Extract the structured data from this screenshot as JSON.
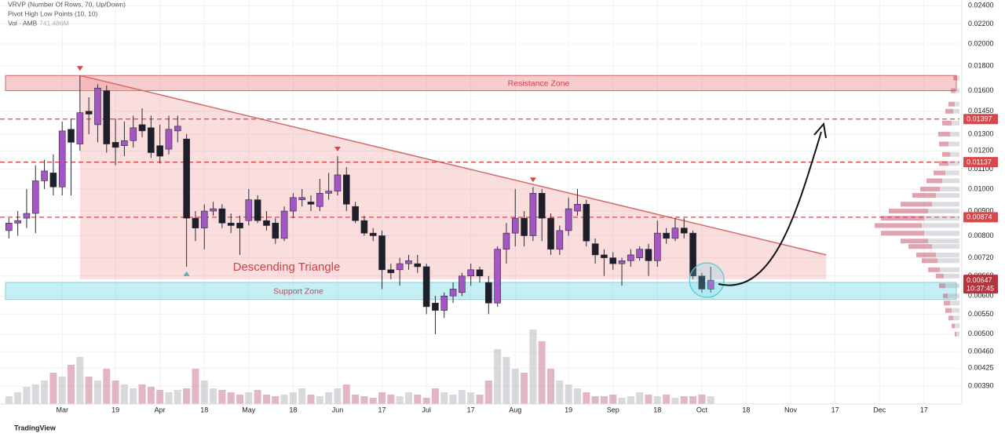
{
  "chart_data": {
    "type": "candlestick",
    "indicators": [
      "VRVP (Number Of Rows, 70, Up/Down)",
      "Pivot High Low Points (10, 10)"
    ],
    "volume_title": "Vol · AMB",
    "volume_value_label": "741.486M",
    "footer": "TradingView",
    "up_color": "#a356c4",
    "down_color": "#1f1e2b",
    "volume_up_color": "rgba(170,170,180,0.45)",
    "volume_down_color": "rgba(200,110,135,0.5)",
    "log_scale": true,
    "grid": true,
    "xlim": [
      -1,
      107
    ],
    "xticks": [
      {
        "value": 6,
        "label": "Mar"
      },
      {
        "value": 12,
        "label": "19"
      },
      {
        "value": 17,
        "label": "Apr"
      },
      {
        "value": 22,
        "label": "18"
      },
      {
        "value": 27,
        "label": "May"
      },
      {
        "value": 32,
        "label": "18"
      },
      {
        "value": 37,
        "label": "Jun"
      },
      {
        "value": 42,
        "label": "17"
      },
      {
        "value": 47,
        "label": "Jul"
      },
      {
        "value": 52,
        "label": "17"
      },
      {
        "value": 57,
        "label": "Aug"
      },
      {
        "value": 63,
        "label": "19"
      },
      {
        "value": 68,
        "label": "Sep"
      },
      {
        "value": 73,
        "label": "18"
      },
      {
        "value": 78,
        "label": "Oct"
      },
      {
        "value": 83,
        "label": "18"
      },
      {
        "value": 88,
        "label": "Nov"
      },
      {
        "value": 93,
        "label": "17"
      },
      {
        "value": 98,
        "label": "Dec"
      },
      {
        "value": 103,
        "label": "17"
      }
    ],
    "ylim": [
      0.00358,
      0.02467
    ],
    "yticks": [
      {
        "value": 0.024,
        "label": "0.02400"
      },
      {
        "value": 0.022,
        "label": "0.02200"
      },
      {
        "value": 0.02,
        "label": "0.02000"
      },
      {
        "value": 0.018,
        "label": "0.01800"
      },
      {
        "value": 0.016,
        "label": "0.01600"
      },
      {
        "value": 0.0145,
        "label": "0.01450"
      },
      {
        "value": 0.013,
        "label": "0.01300"
      },
      {
        "value": 0.012,
        "label": "0.01200"
      },
      {
        "value": 0.011,
        "label": "0.01100"
      },
      {
        "value": 0.01,
        "label": "0.01000"
      },
      {
        "value": 0.009,
        "label": "0.00900"
      },
      {
        "value": 0.008,
        "label": "0.00800"
      },
      {
        "value": 0.0072,
        "label": "0.00720"
      },
      {
        "value": 0.0066,
        "label": "0.00660"
      },
      {
        "value": 0.006,
        "label": "0.00600"
      },
      {
        "value": 0.0055,
        "label": "0.00550"
      },
      {
        "value": 0.005,
        "label": "0.00500"
      },
      {
        "value": 0.0046,
        "label": "0.00460"
      },
      {
        "value": 0.00425,
        "label": "0.00425"
      },
      {
        "value": 0.0039,
        "label": "0.00390"
      }
    ],
    "open": [
      0.0082,
      0.0085,
      0.0087,
      0.0089,
      0.0104,
      0.0108,
      0.0101,
      0.0133,
      0.0124,
      0.0145,
      0.0136,
      0.016,
      0.0125,
      0.0123,
      0.0126,
      0.0136,
      0.0134,
      0.0123,
      0.0121,
      0.0132,
      0.0127,
      0.0087,
      0.0083,
      0.009,
      0.0091,
      0.0085,
      0.0085,
      0.0086,
      0.0095,
      0.0086,
      0.0085,
      0.0079,
      0.009,
      0.0095,
      0.0094,
      0.0092,
      0.0098,
      0.0099,
      0.0107,
      0.0092,
      0.0086,
      0.0081,
      0.008,
      0.0068,
      0.0068,
      0.007,
      0.007,
      0.0069,
      0.0058,
      0.0056,
      0.006,
      0.0061,
      0.0066,
      0.0068,
      0.0064,
      0.0058,
      0.0075,
      0.0081,
      0.0087,
      0.008,
      0.0098,
      0.0087,
      0.0075,
      0.0082,
      0.009,
      0.0093,
      0.0077,
      0.0073,
      0.0072,
      0.007,
      0.0071,
      0.0072,
      0.0075,
      0.0071,
      0.0081,
      0.0079,
      0.0083,
      0.0081,
      0.0066,
      0.0062
    ],
    "high": [
      0.0087,
      0.009,
      0.01,
      0.0112,
      0.0115,
      0.0118,
      0.0138,
      0.014,
      0.0172,
      0.0155,
      0.0165,
      0.0164,
      0.014,
      0.0138,
      0.0142,
      0.0147,
      0.0142,
      0.0136,
      0.0142,
      0.0142,
      0.013,
      0.009,
      0.0093,
      0.0094,
      0.0093,
      0.0089,
      0.0088,
      0.01,
      0.0097,
      0.009,
      0.0087,
      0.0092,
      0.0098,
      0.01,
      0.0097,
      0.0105,
      0.0108,
      0.0117,
      0.0111,
      0.0094,
      0.0088,
      0.0083,
      0.0082,
      0.007,
      0.0072,
      0.0073,
      0.0073,
      0.007,
      0.006,
      0.0061,
      0.0064,
      0.0067,
      0.007,
      0.0069,
      0.0066,
      0.0076,
      0.0085,
      0.01,
      0.009,
      0.0101,
      0.01,
      0.0089,
      0.0084,
      0.0096,
      0.01,
      0.0095,
      0.0079,
      0.0075,
      0.0074,
      0.0072,
      0.0075,
      0.0076,
      0.0077,
      0.0086,
      0.0083,
      0.0087,
      0.0087,
      0.0082,
      0.0067,
      0.0069
    ],
    "low": [
      0.0079,
      0.008,
      0.0083,
      0.0081,
      0.01,
      0.0097,
      0.0097,
      0.0097,
      0.012,
      0.013,
      0.0125,
      0.0119,
      0.0112,
      0.0117,
      0.0122,
      0.0128,
      0.0116,
      0.0113,
      0.0118,
      0.0125,
      0.0069,
      0.0078,
      0.0075,
      0.0088,
      0.0083,
      0.0081,
      0.0073,
      0.0084,
      0.0085,
      0.0082,
      0.0077,
      0.0078,
      0.0087,
      0.0092,
      0.009,
      0.009,
      0.0095,
      0.0097,
      0.009,
      0.0085,
      0.008,
      0.0078,
      0.0062,
      0.0065,
      0.0063,
      0.0068,
      0.0067,
      0.0055,
      0.005,
      0.0054,
      0.0058,
      0.006,
      0.0063,
      0.0064,
      0.0055,
      0.0057,
      0.007,
      0.0076,
      0.0076,
      0.0078,
      0.0078,
      0.0073,
      0.0073,
      0.008,
      0.0088,
      0.0076,
      0.007,
      0.0066,
      0.0068,
      0.0063,
      0.0069,
      0.0071,
      0.0066,
      0.0069,
      0.0077,
      0.0078,
      0.0079,
      0.0065,
      0.0061,
      0.0061
    ],
    "close": [
      0.0085,
      0.0086,
      0.0089,
      0.0104,
      0.0109,
      0.0101,
      0.0132,
      0.0125,
      0.0144,
      0.0143,
      0.0162,
      0.0124,
      0.0122,
      0.0126,
      0.0134,
      0.0132,
      0.0119,
      0.0117,
      0.0133,
      0.0135,
      0.0087,
      0.0083,
      0.009,
      0.0091,
      0.0085,
      0.0084,
      0.0083,
      0.0095,
      0.0086,
      0.0084,
      0.0079,
      0.009,
      0.0096,
      0.0096,
      0.0093,
      0.0098,
      0.0099,
      0.0107,
      0.0093,
      0.0086,
      0.0081,
      0.008,
      0.0068,
      0.0067,
      0.007,
      0.0071,
      0.0069,
      0.0057,
      0.0056,
      0.006,
      0.0062,
      0.0066,
      0.0068,
      0.0066,
      0.0058,
      0.0075,
      0.0081,
      0.0087,
      0.008,
      0.0098,
      0.0087,
      0.0075,
      0.0082,
      0.0091,
      0.0093,
      0.0078,
      0.0073,
      0.0072,
      0.007,
      0.0071,
      0.0073,
      0.0075,
      0.0071,
      0.0081,
      0.0079,
      0.0083,
      0.0081,
      0.0066,
      0.0062,
      0.00647
    ],
    "volume": [
      740,
      1110,
      1628,
      1850,
      2220,
      2960,
      2590,
      3700,
      4440,
      2590,
      2220,
      3330,
      2220,
      1850,
      1480,
      1850,
      1628,
      1332,
      1110,
      1332,
      1480,
      3330,
      2220,
      1480,
      1332,
      1110,
      888,
      1110,
      1332,
      888,
      740,
      888,
      1110,
      1480,
      888,
      740,
      1110,
      1480,
      1850,
      888,
      740,
      592,
      1110,
      888,
      740,
      1110,
      888,
      592,
      1480,
      1110,
      888,
      1332,
      1110,
      888,
      2220,
      5180,
      4440,
      3330,
      2960,
      7030,
      5920,
      3330,
      2220,
      1850,
      1480,
      1110,
      740,
      740,
      888,
      592,
      740,
      1110,
      888,
      740,
      888,
      592,
      740,
      740,
      888,
      741.486
    ],
    "levels": [
      0.01397,
      0.01137,
      0.00874
    ],
    "level_color": "#d9464c",
    "last_price": 0.00647,
    "countdown": "10:37:45",
    "zones": [
      {
        "name": "Resistance Zone",
        "range": [
          0.016,
          0.0172
        ],
        "color": "rgba(235,120,125,0.38)"
      },
      {
        "name": "Support Zone",
        "range": [
          0.0059,
          0.0064
        ],
        "color": "rgba(110,215,230,0.4)"
      }
    ],
    "pattern": {
      "name": "Descending Triangle",
      "start_index": 8,
      "start_price": 0.0172,
      "end_index": 92,
      "end_price": 0.0073,
      "base_price": 0.0065,
      "color": "rgba(240,150,150,0.32)"
    },
    "pivot_highs": [
      8,
      37,
      59
    ],
    "pivot_lows": [
      20
    ],
    "volume_profile": {
      "prices": [
        0.017,
        0.016,
        0.015,
        0.0145,
        0.0137,
        0.013,
        0.0124,
        0.0118,
        0.0113,
        0.0108,
        0.0104,
        0.01,
        0.0097,
        0.0093,
        0.009,
        0.0087,
        0.0084,
        0.0081,
        0.0078,
        0.0076,
        0.0073,
        0.0071,
        0.0068,
        0.0066,
        0.0063,
        0.006,
        0.0058,
        0.0056,
        0.0054,
        0.0052,
        0.005
      ],
      "up": [
        3,
        5,
        6,
        8,
        10,
        12,
        14,
        12,
        14,
        18,
        22,
        25,
        30,
        35,
        40,
        45,
        48,
        45,
        40,
        35,
        30,
        28,
        25,
        20,
        18,
        15,
        12,
        10,
        8,
        6,
        4
      ],
      "down": [
        5,
        6,
        8,
        10,
        12,
        15,
        12,
        10,
        12,
        15,
        20,
        25,
        30,
        40,
        50,
        55,
        60,
        55,
        35,
        30,
        25,
        20,
        15,
        10,
        8,
        6,
        8,
        8,
        6,
        4,
        2
      ]
    }
  }
}
